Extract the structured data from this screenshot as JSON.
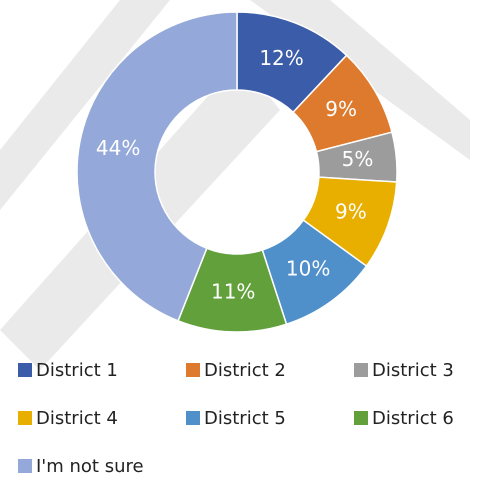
{
  "chart_data": {
    "type": "donut",
    "categories": [
      "District 1",
      "District 2",
      "District 3",
      "District 4",
      "District 5",
      "District 6",
      "I'm not sure"
    ],
    "values": [
      12,
      9,
      5,
      9,
      10,
      11,
      44
    ],
    "value_labels": [
      "12%",
      "9%",
      "5%",
      "9%",
      "10%",
      "11%",
      "44%"
    ],
    "colors": [
      "#3b5ca9",
      "#de7a2d",
      "#9c9c9c",
      "#e8ae00",
      "#4f8fca",
      "#62a03c",
      "#94a8d9"
    ],
    "legend": "bottom"
  }
}
